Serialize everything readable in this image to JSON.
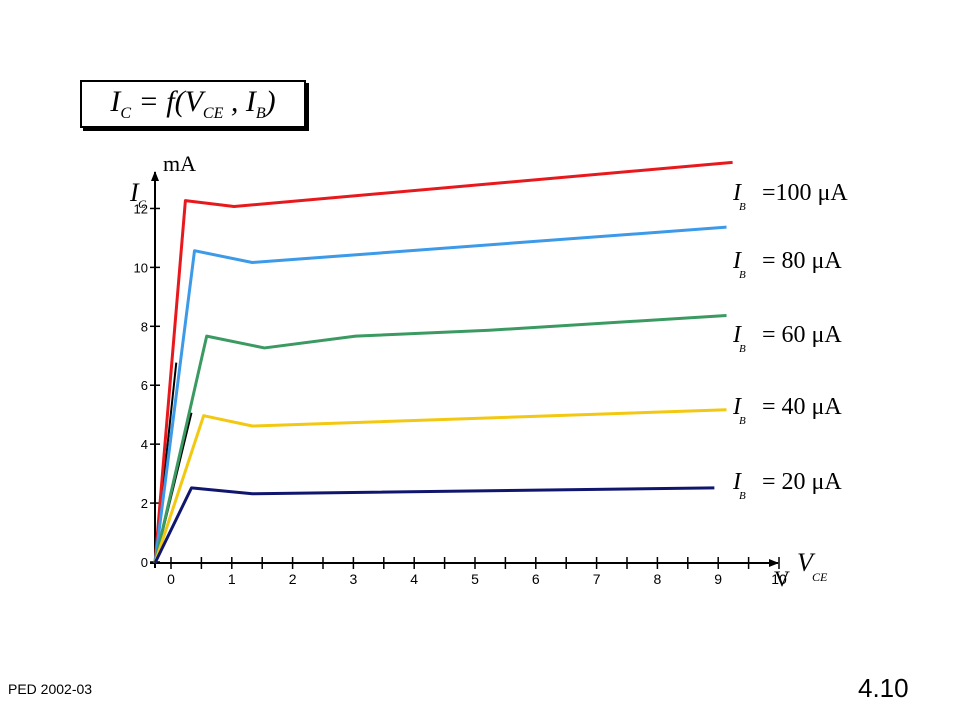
{
  "formula": "I_C = f(V_CE , I_B)",
  "footer": {
    "left": "PED   2002-03",
    "right": "4.10"
  },
  "chart_data": {
    "type": "line",
    "title": "",
    "y_unit": "mA",
    "y_symbol": "I",
    "y_symbol_sub": "C",
    "x_unit": "V",
    "x_symbol": "V",
    "x_symbol_sub": "CE",
    "xlim": [
      0,
      10
    ],
    "ylim": [
      0,
      13
    ],
    "x_ticks": [
      "0",
      "1",
      "2",
      "3",
      "4",
      "5",
      "6",
      "7",
      "8",
      "9",
      "10"
    ],
    "y_ticks": [
      "0",
      "2",
      "4",
      "6",
      "8",
      "10",
      "12"
    ],
    "grid": false,
    "series": [
      {
        "label_symbol": "I",
        "label_sub": "B",
        "label_value": "=100  μA",
        "color": "#e8191c",
        "x": [
          0,
          0.5,
          1.3,
          9.5
        ],
        "y": [
          0,
          12.3,
          12.1,
          13.6
        ]
      },
      {
        "label_symbol": "I",
        "label_sub": "B",
        "label_value": "= 80  μA",
        "color": "#3d9ae8",
        "x": [
          0,
          0.65,
          1.6,
          9.4
        ],
        "y": [
          0,
          10.6,
          10.2,
          11.4
        ]
      },
      {
        "label_symbol": "I",
        "label_sub": "B",
        "label_value": "= 60  μA",
        "color": "#3a9a62",
        "x": [
          0,
          0.85,
          1.8,
          3.3,
          5.5,
          9.4
        ],
        "y": [
          0,
          7.7,
          7.3,
          7.7,
          7.9,
          8.4
        ]
      },
      {
        "label_symbol": "I",
        "label_sub": "B",
        "label_value": "= 40  μA",
        "color": "#f2c811",
        "x": [
          0,
          0.8,
          1.6,
          9.4
        ],
        "y": [
          0,
          5.0,
          4.65,
          5.2
        ]
      },
      {
        "label_symbol": "I",
        "label_sub": "B",
        "label_value": "= 20  μA",
        "color": "#10166e",
        "x": [
          0,
          0.6,
          1.6,
          9.2
        ],
        "y": [
          0,
          2.55,
          2.35,
          2.55
        ]
      }
    ],
    "load_lines": [
      {
        "color": "#000000",
        "x": [
          0,
          0.35
        ],
        "y": [
          0,
          6.8
        ]
      },
      {
        "color": "#000000",
        "x": [
          0,
          0.6
        ],
        "y": [
          0,
          5.1
        ]
      }
    ]
  }
}
